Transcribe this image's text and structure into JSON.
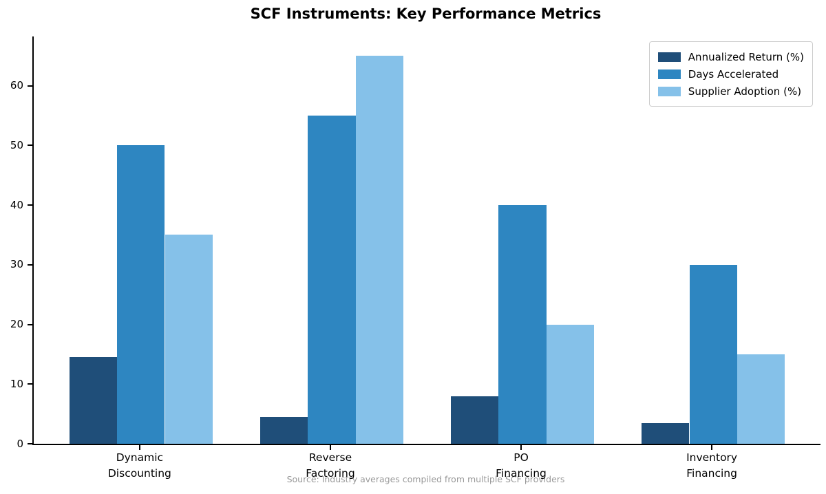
{
  "title": "SCF Instruments: Key Performance Metrics",
  "source_note": "Source: Industry averages compiled from multiple SCF providers",
  "colors": {
    "series_dark": "#1f4e79",
    "series_medium": "#2e86c1",
    "series_light": "#85c1e9",
    "axis": "#000000",
    "source_text": "#999999",
    "legend_border": "#cccccc"
  },
  "chart_data": {
    "type": "bar",
    "title": "SCF Instruments: Key Performance Metrics",
    "categories": [
      "Dynamic\nDiscounting",
      "Reverse\nFactoring",
      "PO\nFinancing",
      "Inventory\nFinancing"
    ],
    "series": [
      {
        "name": "Annualized Return (%)",
        "color": "#1f4e79",
        "values": [
          14.5,
          4.5,
          8,
          3.5
        ]
      },
      {
        "name": "Days Accelerated",
        "color": "#2e86c1",
        "values": [
          50,
          55,
          40,
          30
        ]
      },
      {
        "name": "Supplier Adoption (%)",
        "color": "#85c1e9",
        "values": [
          35,
          65,
          20,
          15
        ]
      }
    ],
    "xlabel": "",
    "ylabel": "",
    "yticks": [
      0,
      10,
      20,
      30,
      40,
      50,
      60
    ],
    "ylim": [
      0,
      68.25
    ],
    "bar_width_fraction": 0.25,
    "grid": false,
    "legend_position": "upper right",
    "annotation": "Source: Industry averages compiled from multiple SCF providers"
  }
}
